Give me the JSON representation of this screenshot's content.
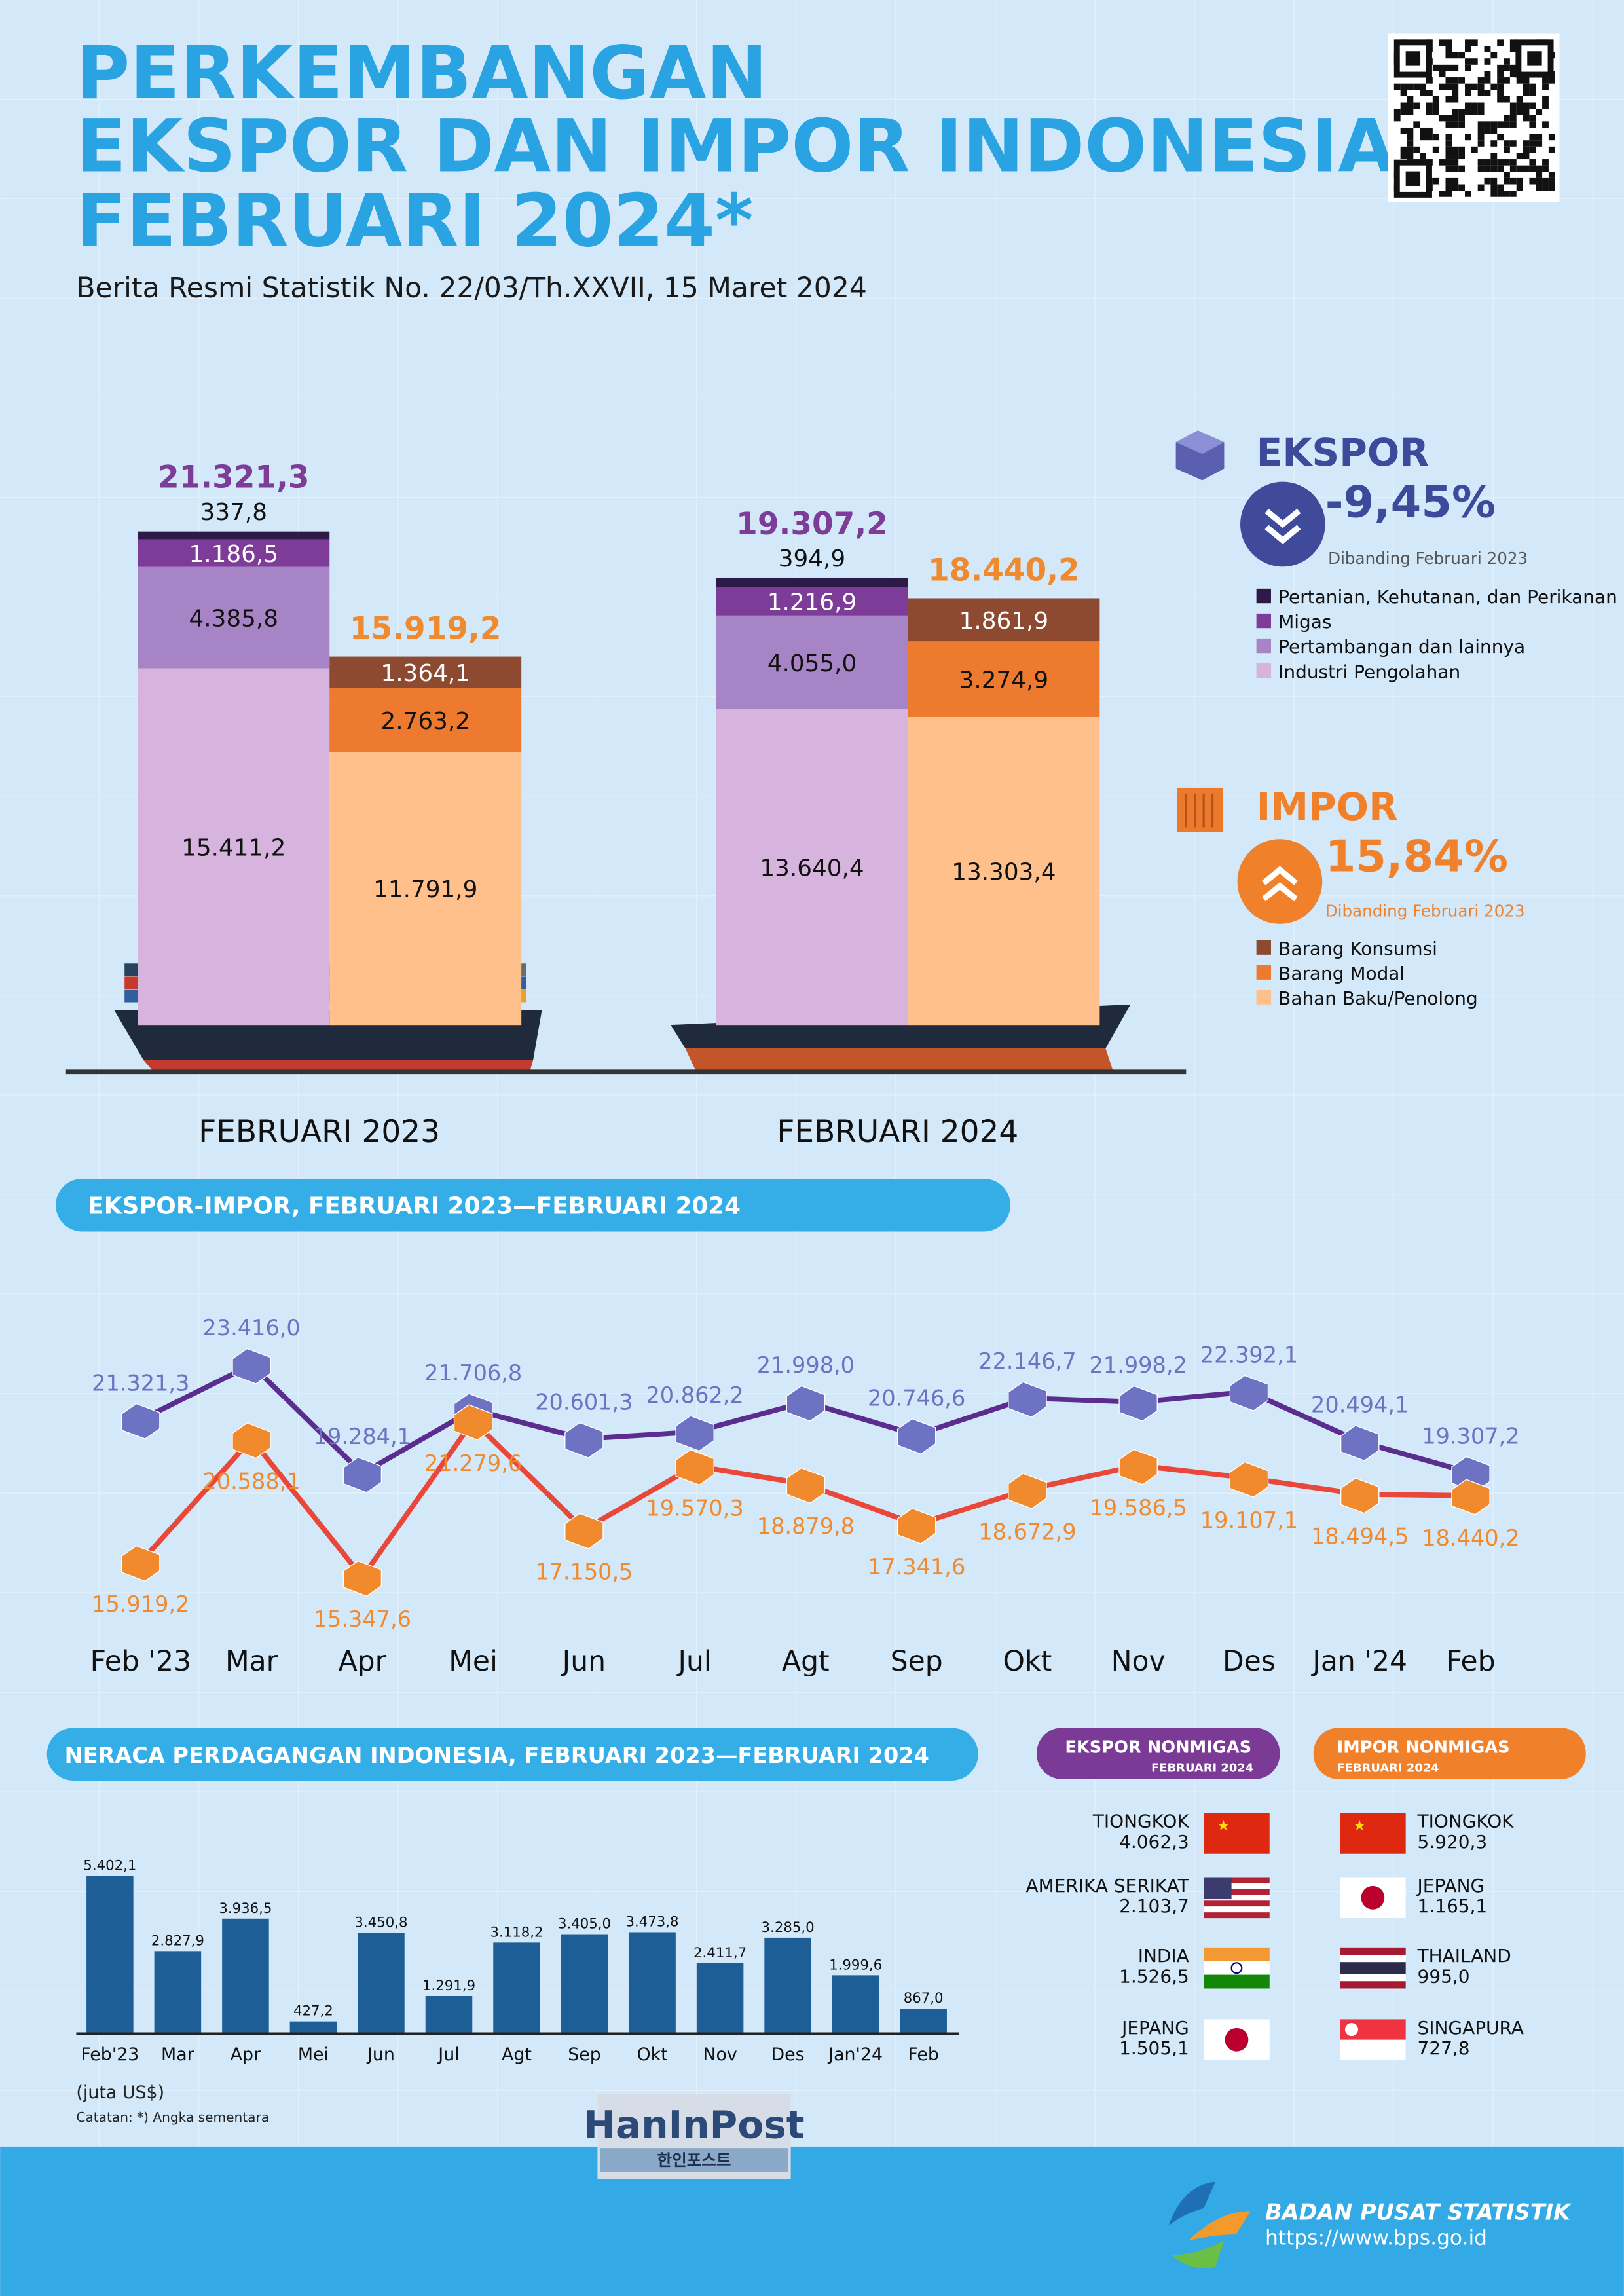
{
  "header": {
    "title_lines": [
      "PERKEMBANGAN",
      "EKSPOR DAN IMPOR INDONESIA",
      "FEBRUARI 2024*"
    ],
    "subtitle": "Berita Resmi Statistik No. 22/03/Th.XXVII, 15 Maret 2024"
  },
  "ekspor_summary": {
    "title": "EKSPOR",
    "change": "-9,45%",
    "note": "Dibanding Februari 2023"
  },
  "impor_summary": {
    "title": "IMPOR",
    "change": "15,84%",
    "note": "Dibanding Februari 2023"
  },
  "chart_data": [
    {
      "type": "stacked_bar",
      "categories": [
        "FEBRUARI 2023",
        "FEBRUARI 2024"
      ],
      "series": [
        {
          "name": "Pertanian, Kehutanan, dan Perikanan",
          "stack": "ekspor",
          "color": "#2e1a47",
          "values": [
            337.8,
            394.9
          ],
          "value_labels": [
            "337,8",
            "394,9"
          ]
        },
        {
          "name": "Migas",
          "stack": "ekspor",
          "color": "#7d3c98",
          "values": [
            1186.5,
            1216.9
          ],
          "value_labels": [
            "1.186,5",
            "1.216,9"
          ]
        },
        {
          "name": "Pertambangan dan lainnya",
          "stack": "ekspor",
          "color": "#a784c6",
          "values": [
            4385.8,
            4055.0
          ],
          "value_labels": [
            "4.385,8",
            "4.055,0"
          ]
        },
        {
          "name": "Industri Pengolahan",
          "stack": "ekspor",
          "color": "#d6b4dd",
          "values": [
            15411.2,
            13640.4
          ],
          "value_labels": [
            "15.411,2",
            "13.640,4"
          ]
        },
        {
          "name": "Barang Konsumsi",
          "stack": "impor",
          "color": "#8e4a30",
          "values": [
            1364.1,
            1861.9
          ],
          "value_labels": [
            "1.364,1",
            "1.861,9"
          ]
        },
        {
          "name": "Barang Modal",
          "stack": "impor",
          "color": "#ee7a30",
          "values": [
            2763.2,
            3274.9
          ],
          "value_labels": [
            "2.763,2",
            "3.274,9"
          ]
        },
        {
          "name": "Bahan Baku/Penolong",
          "stack": "impor",
          "color": "#ffc08c",
          "values": [
            11791.9,
            13303.4
          ],
          "value_labels": [
            "11.791,9",
            "13.303,4"
          ]
        }
      ],
      "totals": [
        {
          "stack": "ekspor",
          "color": "#7d3c98",
          "values": [
            21321.3,
            19307.2
          ],
          "value_labels": [
            "21.321,3",
            "19.307,2"
          ]
        },
        {
          "stack": "impor",
          "color": "#ef8a2e",
          "values": [
            15919.2,
            18440.2
          ],
          "value_labels": [
            "15.919,2",
            "18.440,2"
          ]
        }
      ]
    },
    {
      "type": "line",
      "title": "EKSPOR-IMPOR, FEBRUARI 2023—FEBRUARI 2024",
      "categories": [
        "Feb '23",
        "Mar",
        "Apr",
        "Mei",
        "Jun",
        "Jul",
        "Agt",
        "Sep",
        "Okt",
        "Nov",
        "Des",
        "Jan '24",
        "Feb"
      ],
      "series": [
        {
          "color": "#5b2d8e",
          "marker_color": "#6d72c3",
          "values": [
            21321.3,
            23416.0,
            19284.1,
            21706.8,
            20601.3,
            20862.2,
            21998.0,
            20746.6,
            22146.7,
            21998.2,
            22392.1,
            20494.1,
            19307.2
          ],
          "value_labels": [
            "21.321,3",
            "23.416,0",
            "19.284,1",
            "21.706,8",
            "20.601,3",
            "20.862,2",
            "21.998,0",
            "20.746,6",
            "22.146,7",
            "21.998,2",
            "22.392,1",
            "20.494,1",
            "19.307,2"
          ]
        },
        {
          "color": "#e8473a",
          "marker_color": "#f18a2d",
          "values": [
            15919.2,
            20588.1,
            15347.6,
            21279.6,
            17150.5,
            19570.3,
            18879.8,
            17341.6,
            18672.9,
            19586.5,
            19107.1,
            18494.5,
            18440.2
          ],
          "value_labels": [
            "15.919,2",
            "20.588,1",
            "15.347,6",
            "21.279,6",
            "17.150,5",
            "19.570,3",
            "18.879,8",
            "17.341,6",
            "18.672,9",
            "19.586,5",
            "19.107,1",
            "18.494,5",
            "18.440,2"
          ]
        }
      ]
    },
    {
      "type": "bar",
      "title": "NERACA PERDAGANGAN INDONESIA, FEBRUARI 2023—FEBRUARI 2024",
      "categories": [
        "Feb'23",
        "Mar",
        "Apr",
        "Mei",
        "Jun",
        "Jul",
        "Agt",
        "Sep",
        "Okt",
        "Nov",
        "Des",
        "Jan'24",
        "Feb"
      ],
      "values": [
        5402.1,
        2827.9,
        3936.5,
        427.2,
        3450.8,
        1291.9,
        3118.2,
        3405.0,
        3473.8,
        2411.7,
        3285.0,
        1999.6,
        867.0
      ],
      "value_labels": [
        "5.402,1",
        "2.827,9",
        "3.936,5",
        "427,2",
        "3.450,8",
        "1.291,9",
        "3.118,2",
        "3.405,0",
        "3.473,8",
        "2.411,7",
        "3.285,0",
        "1.999,6",
        "867,0"
      ],
      "color": "#1d5e96",
      "unit": "(juta US$)",
      "note": "Catatan: *) Angka sementara"
    }
  ],
  "ekspor_nonmigas": {
    "title": "EKSPOR NONMIGAS",
    "period": "FEBRUARI 2024",
    "countries": [
      {
        "name": "TIONGKOK",
        "value": "4.062,3"
      },
      {
        "name": "AMERIKA SERIKAT",
        "value": "2.103,7"
      },
      {
        "name": "INDIA",
        "value": "1.526,5"
      },
      {
        "name": "JEPANG",
        "value": "1.505,1"
      }
    ]
  },
  "impor_nonmigas": {
    "title": "IMPOR NONMIGAS",
    "period": "FEBRUARI 2024",
    "countries": [
      {
        "name": "TIONGKOK",
        "value": "5.920,3"
      },
      {
        "name": "JEPANG",
        "value": "1.165,1"
      },
      {
        "name": "THAILAND",
        "value": "995,0"
      },
      {
        "name": "SINGAPURA",
        "value": "727,8"
      }
    ]
  },
  "watermark": {
    "name": "HanInPost",
    "korean": "한인포스트"
  },
  "footer": {
    "organization": "BADAN PUSAT STATISTIK",
    "url": "https://www.bps.go.id"
  }
}
